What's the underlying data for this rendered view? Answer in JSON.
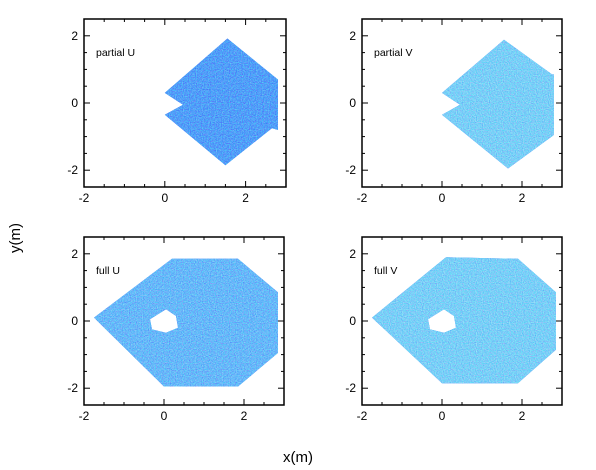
{
  "figure": {
    "xlabel": "x(m)",
    "ylabel": "y(m)"
  },
  "colors": {
    "field_light": "#33bbee",
    "field_mid": "#1e6ff5",
    "field_dark": "#0a1dc8",
    "field_extra": "#4fd5e6",
    "axis": "#000000",
    "background": "#ffffff"
  },
  "chart_data": [
    {
      "type": "heatmap",
      "panel": "top-left",
      "label": "partial U",
      "xlim": [
        -2,
        3
      ],
      "ylim": [
        -2.5,
        2.5
      ],
      "xticks": [
        -2,
        0,
        2
      ],
      "yticks": [
        -2,
        0,
        2
      ],
      "tone": "dark",
      "region": [
        [
          0,
          0.3
        ],
        [
          1.55,
          1.92
        ],
        [
          2.8,
          0.7
        ],
        [
          2.8,
          -0.8
        ],
        [
          2.65,
          -0.75
        ],
        [
          1.5,
          -1.85
        ],
        [
          0,
          -0.35
        ],
        [
          0.45,
          -0.05
        ],
        [
          0,
          0.3
        ]
      ]
    },
    {
      "type": "heatmap",
      "panel": "top-right",
      "label": "partial V",
      "xlim": [
        -2,
        3
      ],
      "ylim": [
        -2.5,
        2.5
      ],
      "xticks": [
        -2,
        0,
        2
      ],
      "yticks": [
        -2,
        0,
        2
      ],
      "tone": "light",
      "region": [
        [
          0,
          0.3
        ],
        [
          1.55,
          1.88
        ],
        [
          2.75,
          0.85
        ],
        [
          2.8,
          0.85
        ],
        [
          2.8,
          -0.95
        ],
        [
          1.65,
          -1.95
        ],
        [
          0,
          -0.35
        ],
        [
          0.45,
          -0.05
        ],
        [
          0,
          0.3
        ]
      ]
    },
    {
      "type": "heatmap",
      "panel": "bottom-left",
      "label": "full U",
      "xlim": [
        -2,
        3
      ],
      "ylim": [
        -2.5,
        2.5
      ],
      "xticks": [
        -2,
        0,
        2
      ],
      "yticks": [
        -2,
        0,
        2
      ],
      "tone": "mid",
      "region": [
        [
          -1.75,
          0.1
        ],
        [
          0.2,
          1.85
        ],
        [
          1.85,
          1.85
        ],
        [
          2.85,
          0.85
        ],
        [
          2.85,
          -0.95
        ],
        [
          1.85,
          -1.95
        ],
        [
          0,
          -1.95
        ],
        [
          -1.75,
          0.1
        ]
      ],
      "hole": [
        [
          -0.35,
          0.05
        ],
        [
          0.05,
          0.35
        ],
        [
          0.3,
          0.15
        ],
        [
          0.35,
          -0.2
        ],
        [
          0.05,
          -0.35
        ],
        [
          -0.3,
          -0.25
        ],
        [
          -0.35,
          0.05
        ]
      ]
    },
    {
      "type": "heatmap",
      "panel": "bottom-right",
      "label": "full V",
      "xlim": [
        -2,
        3
      ],
      "ylim": [
        -2.5,
        2.5
      ],
      "xticks": [
        -2,
        0,
        2
      ],
      "yticks": [
        -2,
        0,
        2
      ],
      "tone": "light",
      "region": [
        [
          -1.75,
          0.1
        ],
        [
          0.1,
          1.9
        ],
        [
          1.9,
          1.85
        ],
        [
          2.85,
          0.85
        ],
        [
          2.85,
          -0.85
        ],
        [
          1.9,
          -1.85
        ],
        [
          0,
          -1.85
        ],
        [
          -1.75,
          0.1
        ]
      ],
      "hole": [
        [
          -0.35,
          0.05
        ],
        [
          0.05,
          0.35
        ],
        [
          0.3,
          0.15
        ],
        [
          0.35,
          -0.2
        ],
        [
          0.05,
          -0.35
        ],
        [
          -0.3,
          -0.25
        ],
        [
          -0.35,
          0.05
        ]
      ]
    }
  ]
}
